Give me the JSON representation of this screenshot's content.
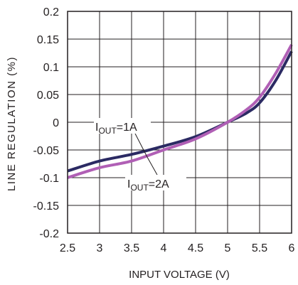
{
  "chart_data": {
    "type": "line",
    "xlabel": "INPUT VOLTAGE (V)",
    "ylabel": "LINE REGULATION (%)",
    "xlim": [
      2.5,
      6
    ],
    "ylim": [
      -0.2,
      0.2
    ],
    "x_ticks": [
      "2.5",
      "3",
      "3.5",
      "4",
      "4.5",
      "5",
      "5.5",
      "6"
    ],
    "y_ticks": [
      "0.2",
      "0.15",
      "0.1",
      "0.05",
      "0",
      "-0.05",
      "-0.1",
      "-0.15",
      "-0.2"
    ],
    "grid": true,
    "series": [
      {
        "name": "IOUT=1A",
        "color": "#2b2a63",
        "x": [
          2.5,
          3,
          3.5,
          4,
          4.5,
          5,
          5.3,
          5.5,
          5.75,
          6
        ],
        "y": [
          -0.088,
          -0.07,
          -0.058,
          -0.043,
          -0.026,
          0,
          0.017,
          0.035,
          0.075,
          0.128
        ]
      },
      {
        "name": "IOUT=2A",
        "color": "#b05fb5",
        "x": [
          2.5,
          3,
          3.5,
          4,
          4.5,
          5,
          5.3,
          5.5,
          5.75,
          6
        ],
        "y": [
          -0.1,
          -0.082,
          -0.07,
          -0.05,
          -0.03,
          0,
          0.023,
          0.045,
          0.088,
          0.14
        ]
      }
    ],
    "annotations": [
      {
        "series": "IOUT=1A",
        "prefix": "I",
        "sub": "OUT",
        "suffix": "=1A"
      },
      {
        "series": "IOUT=2A",
        "prefix": "I",
        "sub": "OUT",
        "suffix": "=2A"
      }
    ]
  }
}
